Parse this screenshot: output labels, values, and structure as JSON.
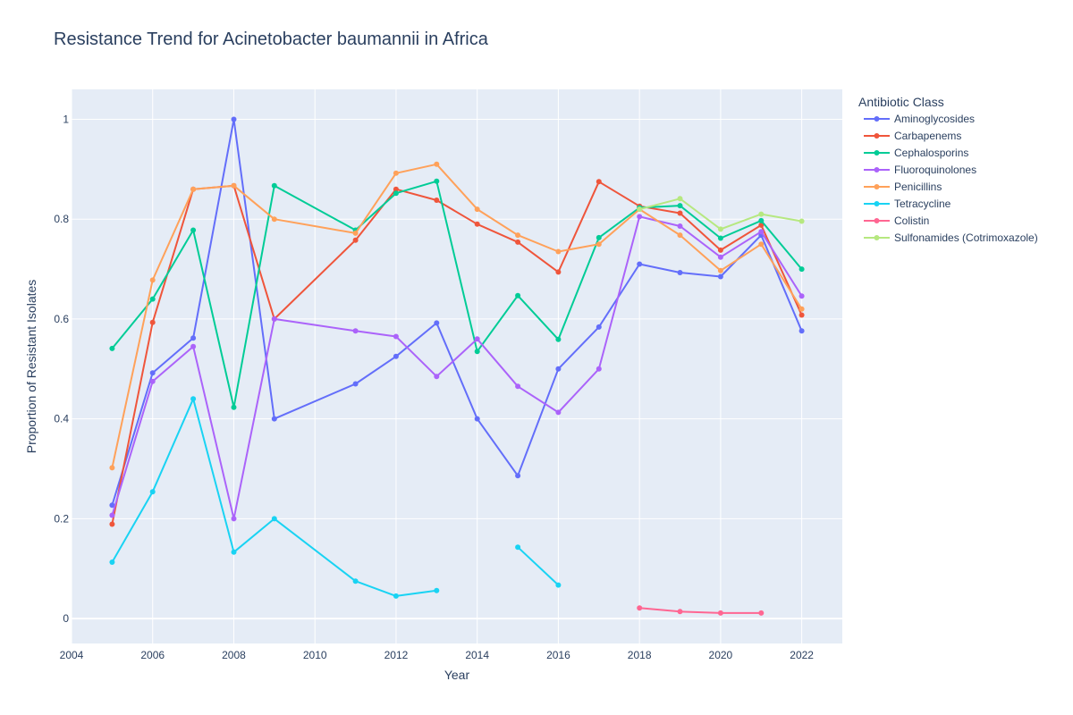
{
  "chart_data": {
    "type": "line",
    "title": "Resistance Trend for Acinetobacter baumannii in Africa",
    "xlabel": "Year",
    "ylabel": "Proportion of Resistant Isolates",
    "xlim": [
      2004,
      2023
    ],
    "ylim": [
      -0.05,
      1.06
    ],
    "x_ticks": [
      2004,
      2006,
      2008,
      2010,
      2012,
      2014,
      2016,
      2018,
      2020,
      2022
    ],
    "y_ticks": [
      0,
      0.2,
      0.4,
      0.6,
      0.8,
      1
    ],
    "x_tick_labels": [
      "2004",
      "2006",
      "2008",
      "2010",
      "2012",
      "2014",
      "2016",
      "2018",
      "2020",
      "2022"
    ],
    "y_tick_labels": [
      "0",
      "0.2",
      "0.4",
      "0.6",
      "0.8",
      "1"
    ],
    "grid": true,
    "legend_title": "Antibiotic Class",
    "legend_position": "right",
    "plot_background": "#e5ecf6",
    "series": [
      {
        "name": "Aminoglycosides",
        "color": "#636efa",
        "points": [
          [
            2005,
            0.227
          ],
          [
            2006,
            0.492
          ],
          [
            2007,
            0.562
          ],
          [
            2008,
            1.0
          ],
          [
            2009,
            0.4
          ],
          [
            2011,
            0.47
          ],
          [
            2012,
            0.525
          ],
          [
            2013,
            0.592
          ],
          [
            2014,
            0.4
          ],
          [
            2015,
            0.286
          ],
          [
            2016,
            0.5
          ],
          [
            2017,
            0.584
          ],
          [
            2018,
            0.71
          ],
          [
            2019,
            0.693
          ],
          [
            2020,
            0.685
          ],
          [
            2021,
            0.768
          ],
          [
            2022,
            0.576
          ]
        ]
      },
      {
        "name": "Carbapenems",
        "color": "#ef553b",
        "points": [
          [
            2005,
            0.189
          ],
          [
            2006,
            0.593
          ],
          [
            2007,
            0.86
          ],
          [
            2008,
            0.867
          ],
          [
            2009,
            0.6
          ],
          [
            2011,
            0.758
          ],
          [
            2012,
            0.86
          ],
          [
            2013,
            0.838
          ],
          [
            2014,
            0.79
          ],
          [
            2015,
            0.754
          ],
          [
            2016,
            0.694
          ],
          [
            2017,
            0.875
          ],
          [
            2018,
            0.826
          ],
          [
            2019,
            0.812
          ],
          [
            2020,
            0.738
          ],
          [
            2021,
            0.788
          ],
          [
            2022,
            0.608
          ]
        ]
      },
      {
        "name": "Cephalosporins",
        "color": "#00cc96",
        "points": [
          [
            2005,
            0.541
          ],
          [
            2006,
            0.64
          ],
          [
            2007,
            0.778
          ],
          [
            2008,
            0.423
          ],
          [
            2009,
            0.867
          ],
          [
            2011,
            0.778
          ],
          [
            2012,
            0.852
          ],
          [
            2013,
            0.876
          ],
          [
            2014,
            0.535
          ],
          [
            2015,
            0.647
          ],
          [
            2016,
            0.559
          ],
          [
            2017,
            0.763
          ],
          [
            2018,
            0.823
          ],
          [
            2019,
            0.827
          ],
          [
            2020,
            0.762
          ],
          [
            2021,
            0.797
          ],
          [
            2022,
            0.7
          ]
        ]
      },
      {
        "name": "Fluoroquinolones",
        "color": "#ab63fa",
        "points": [
          [
            2005,
            0.207
          ],
          [
            2006,
            0.475
          ],
          [
            2007,
            0.545
          ],
          [
            2008,
            0.2
          ],
          [
            2009,
            0.6
          ],
          [
            2011,
            0.576
          ],
          [
            2012,
            0.565
          ],
          [
            2013,
            0.485
          ],
          [
            2014,
            0.56
          ],
          [
            2015,
            0.465
          ],
          [
            2016,
            0.413
          ],
          [
            2017,
            0.5
          ],
          [
            2018,
            0.805
          ],
          [
            2019,
            0.786
          ],
          [
            2020,
            0.724
          ],
          [
            2021,
            0.775
          ],
          [
            2022,
            0.646
          ]
        ]
      },
      {
        "name": "Penicillins",
        "color": "#ffa15a",
        "points": [
          [
            2005,
            0.302
          ],
          [
            2006,
            0.678
          ],
          [
            2007,
            0.86
          ],
          [
            2008,
            0.867
          ],
          [
            2009,
            0.8
          ],
          [
            2011,
            0.772
          ],
          [
            2012,
            0.892
          ],
          [
            2013,
            0.91
          ],
          [
            2014,
            0.82
          ],
          [
            2015,
            0.768
          ],
          [
            2016,
            0.735
          ],
          [
            2017,
            0.75
          ],
          [
            2018,
            0.82
          ],
          [
            2019,
            0.768
          ],
          [
            2020,
            0.697
          ],
          [
            2021,
            0.75
          ],
          [
            2022,
            0.62
          ]
        ]
      },
      {
        "name": "Tetracycline",
        "color": "#19d3f3",
        "points": [
          [
            2005,
            0.113
          ],
          [
            2006,
            0.254
          ],
          [
            2007,
            0.44
          ],
          [
            2008,
            0.133
          ],
          [
            2009,
            0.2
          ],
          [
            2011,
            0.075
          ],
          [
            2012,
            0.045
          ],
          [
            2013,
            0.056
          ],
          [
            2014,
            null
          ],
          [
            2015,
            0.143
          ],
          [
            2016,
            0.067
          ]
        ]
      },
      {
        "name": "Colistin",
        "color": "#ff6692",
        "points": [
          [
            2018,
            0.021
          ],
          [
            2019,
            0.014
          ],
          [
            2020,
            0.011
          ],
          [
            2021,
            0.011
          ]
        ]
      },
      {
        "name": "Sulfonamides (Cotrimoxazole)",
        "color": "#b6e880",
        "points": [
          [
            2018,
            0.82
          ],
          [
            2019,
            0.841
          ],
          [
            2020,
            0.78
          ],
          [
            2021,
            0.81
          ],
          [
            2022,
            0.796
          ]
        ]
      }
    ]
  }
}
